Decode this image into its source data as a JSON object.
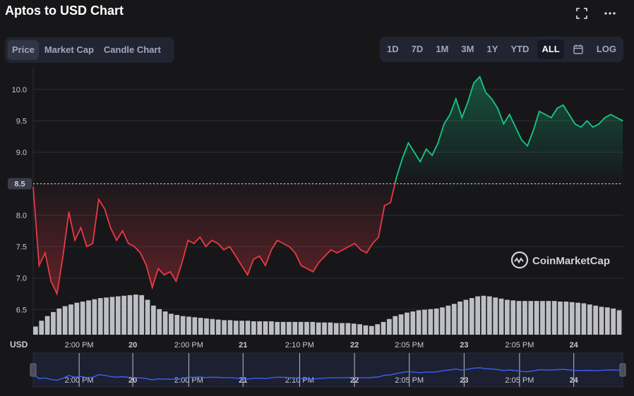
{
  "header": {
    "title": "Aptos to USD Chart",
    "fullscreen_icon": "fullscreen-icon",
    "more_icon": "more-dots-icon"
  },
  "type_tabs": [
    {
      "label": "Price",
      "active": true
    },
    {
      "label": "Market Cap",
      "active": false
    },
    {
      "label": "Candle Chart",
      "active": false
    }
  ],
  "range_tabs": [
    {
      "label": "1D",
      "active": false
    },
    {
      "label": "7D",
      "active": false
    },
    {
      "label": "1M",
      "active": false
    },
    {
      "label": "3M",
      "active": false
    },
    {
      "label": "1Y",
      "active": false
    },
    {
      "label": "YTD",
      "active": false
    },
    {
      "label": "ALL",
      "active": true
    },
    {
      "label": "",
      "icon": "calendar-icon",
      "active": false
    },
    {
      "label": "LOG",
      "active": false
    }
  ],
  "watermark": "CoinMarketCap",
  "currency_label": "USD",
  "colors": {
    "up": "#16c784",
    "down": "#ea3943",
    "volume": "#cfd1d8",
    "navigator_line": "#3861fb",
    "background": "#17171a"
  },
  "chart_data": {
    "type": "line",
    "series": [
      {
        "name": "Price",
        "values": [
          8.45,
          7.2,
          7.4,
          6.95,
          6.75,
          7.35,
          8.05,
          7.6,
          7.8,
          7.5,
          7.55,
          8.25,
          8.1,
          7.8,
          7.6,
          7.75,
          7.55,
          7.5,
          7.4,
          7.2,
          6.85,
          7.15,
          7.05,
          7.1,
          6.95,
          7.25,
          7.6,
          7.55,
          7.65,
          7.5,
          7.6,
          7.55,
          7.45,
          7.5,
          7.35,
          7.2,
          7.05,
          7.3,
          7.35,
          7.2,
          7.45,
          7.6,
          7.55,
          7.5,
          7.4,
          7.2,
          7.15,
          7.1,
          7.25,
          7.35,
          7.45,
          7.4,
          7.45,
          7.5,
          7.55,
          7.45,
          7.4,
          7.55,
          7.65,
          8.15,
          8.2,
          8.6,
          8.9,
          9.15,
          9.0,
          8.85,
          9.05,
          8.95,
          9.15,
          9.45,
          9.6,
          9.85,
          9.55,
          9.8,
          10.1,
          10.2,
          9.95,
          9.85,
          9.7,
          9.45,
          9.6,
          9.4,
          9.2,
          9.1,
          9.35,
          9.65,
          9.6,
          9.55,
          9.7,
          9.75,
          9.6,
          9.45,
          9.4,
          9.5,
          9.4,
          9.45,
          9.55,
          9.6,
          9.55,
          9.5
        ]
      }
    ],
    "volume": [
      0.14,
      0.24,
      0.32,
      0.39,
      0.45,
      0.49,
      0.52,
      0.55,
      0.57,
      0.59,
      0.61,
      0.63,
      0.64,
      0.65,
      0.66,
      0.67,
      0.68,
      0.69,
      0.68,
      0.6,
      0.5,
      0.44,
      0.4,
      0.36,
      0.34,
      0.32,
      0.31,
      0.3,
      0.29,
      0.28,
      0.27,
      0.26,
      0.25,
      0.25,
      0.24,
      0.24,
      0.24,
      0.23,
      0.23,
      0.23,
      0.23,
      0.22,
      0.22,
      0.22,
      0.22,
      0.22,
      0.22,
      0.22,
      0.21,
      0.21,
      0.21,
      0.2,
      0.2,
      0.2,
      0.19,
      0.18,
      0.16,
      0.15,
      0.18,
      0.22,
      0.27,
      0.32,
      0.35,
      0.38,
      0.4,
      0.42,
      0.43,
      0.44,
      0.45,
      0.47,
      0.5,
      0.53,
      0.57,
      0.6,
      0.63,
      0.66,
      0.67,
      0.66,
      0.64,
      0.62,
      0.6,
      0.59,
      0.58,
      0.58,
      0.58,
      0.58,
      0.58,
      0.58,
      0.58,
      0.57,
      0.57,
      0.56,
      0.55,
      0.54,
      0.52,
      0.5,
      0.48,
      0.47,
      0.45,
      0.42
    ],
    "reference_value": 8.5,
    "reference_label": "8.5",
    "ylim": [
      6.1,
      10.3
    ],
    "y_ticks": [
      6.5,
      7.0,
      7.5,
      8.0,
      8.5,
      9.0,
      9.5,
      10.0
    ],
    "y_tick_labels": [
      "6.5",
      "7.0",
      "7.5",
      "8.0",
      "",
      "9.0",
      "9.5",
      "10.0"
    ],
    "x_ticks": [
      {
        "label": "2:00 PM",
        "pos": 0.078,
        "bold": false
      },
      {
        "label": "20",
        "pos": 0.169,
        "bold": true
      },
      {
        "label": "2:00 PM",
        "pos": 0.264,
        "bold": false
      },
      {
        "label": "21",
        "pos": 0.356,
        "bold": true
      },
      {
        "label": "2:10 PM",
        "pos": 0.452,
        "bold": false
      },
      {
        "label": "22",
        "pos": 0.545,
        "bold": true
      },
      {
        "label": "2:05 PM",
        "pos": 0.638,
        "bold": false
      },
      {
        "label": "23",
        "pos": 0.731,
        "bold": true
      },
      {
        "label": "2:05 PM",
        "pos": 0.825,
        "bold": false
      },
      {
        "label": "24",
        "pos": 0.917,
        "bold": true
      }
    ],
    "xlabel": "",
    "ylabel": "",
    "grid": true
  }
}
